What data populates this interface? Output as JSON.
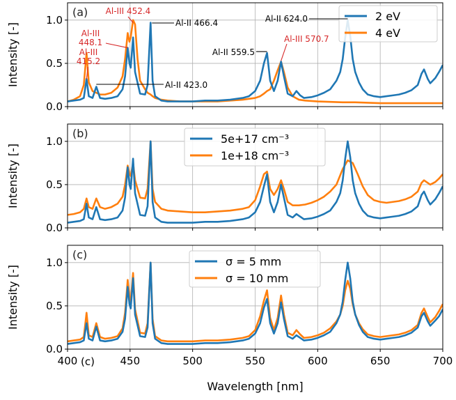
{
  "chart_data": [
    {
      "type": "line",
      "panel_label": "(a)",
      "xlabel": "",
      "ylabel": "Intensity [-]",
      "xlim": [
        400,
        700
      ],
      "ylim": [
        0,
        1.2
      ],
      "yticks": [
        "0.0",
        "0.5",
        "1.0"
      ],
      "grid": true,
      "legend_position": "top-right",
      "series": [
        {
          "name": "2 eV",
          "color": "#1f77b4",
          "x": [
            400,
            405,
            410,
            413,
            415.2,
            417,
            420,
            423,
            426,
            430,
            435,
            440,
            444,
            446,
            448.1,
            449.5,
            450.5,
            452.4,
            454,
            458,
            462,
            464,
            466.4,
            468,
            470,
            475,
            480,
            490,
            500,
            510,
            520,
            530,
            540,
            545,
            550,
            554,
            557,
            559.5,
            562,
            565,
            568,
            570.7,
            573,
            576,
            580,
            583,
            586,
            589,
            595,
            600,
            605,
            610,
            615,
            618,
            620,
            622,
            624,
            626,
            628,
            630,
            633,
            636,
            640,
            645,
            650,
            655,
            660,
            665,
            670,
            675,
            680,
            683,
            685,
            688,
            690,
            694,
            697,
            700
          ],
          "y": [
            0.06,
            0.07,
            0.08,
            0.1,
            0.32,
            0.12,
            0.1,
            0.23,
            0.1,
            0.09,
            0.1,
            0.12,
            0.2,
            0.35,
            0.68,
            0.5,
            0.45,
            0.8,
            0.4,
            0.15,
            0.14,
            0.25,
            0.97,
            0.3,
            0.12,
            0.07,
            0.06,
            0.06,
            0.06,
            0.07,
            0.07,
            0.08,
            0.1,
            0.12,
            0.18,
            0.3,
            0.5,
            0.62,
            0.3,
            0.18,
            0.3,
            0.52,
            0.35,
            0.15,
            0.12,
            0.18,
            0.13,
            0.1,
            0.11,
            0.13,
            0.16,
            0.2,
            0.3,
            0.4,
            0.55,
            0.8,
            1.0,
            0.82,
            0.55,
            0.4,
            0.28,
            0.2,
            0.14,
            0.12,
            0.11,
            0.12,
            0.13,
            0.14,
            0.16,
            0.19,
            0.25,
            0.38,
            0.43,
            0.32,
            0.27,
            0.33,
            0.4,
            0.48
          ]
        },
        {
          "name": "4 eV",
          "color": "#ff7f0e",
          "x": [
            400,
            405,
            410,
            413,
            415.2,
            417,
            420,
            423,
            426,
            430,
            435,
            440,
            444,
            446,
            448.1,
            449.5,
            450.5,
            452.4,
            454,
            456,
            458,
            462,
            464,
            466.4,
            468,
            470,
            475,
            480,
            490,
            500,
            510,
            520,
            530,
            540,
            545,
            550,
            554,
            557,
            559.5,
            562,
            565,
            568,
            570.7,
            573,
            576,
            580,
            585,
            590,
            600,
            620,
            624,
            630,
            650,
            680,
            700
          ],
          "y": [
            0.06,
            0.08,
            0.12,
            0.25,
            0.62,
            0.28,
            0.18,
            0.16,
            0.14,
            0.14,
            0.16,
            0.22,
            0.35,
            0.55,
            0.85,
            0.75,
            0.8,
            1.0,
            0.95,
            0.55,
            0.3,
            0.2,
            0.16,
            0.14,
            0.12,
            0.1,
            0.08,
            0.07,
            0.06,
            0.06,
            0.06,
            0.06,
            0.07,
            0.08,
            0.09,
            0.1,
            0.12,
            0.15,
            0.18,
            0.2,
            0.3,
            0.42,
            0.52,
            0.4,
            0.22,
            0.12,
            0.08,
            0.07,
            0.06,
            0.05,
            0.05,
            0.05,
            0.04,
            0.04,
            0.04
          ]
        }
      ],
      "annotations": [
        {
          "text": "Al-III 452.4",
          "color": "#d62728",
          "x": 452.4,
          "y": 1.0
        },
        {
          "text": "Al-III",
          "color": "#d62728",
          "x": 448.1,
          "y": 0.68
        },
        {
          "text": "448.1",
          "color": "#d62728",
          "x": 448.1,
          "y": 0.68
        },
        {
          "text": "Al-III",
          "color": "#d62728",
          "x": 415.2,
          "y": 0.32
        },
        {
          "text": "415.2",
          "color": "#d62728",
          "x": 415.2,
          "y": 0.32
        },
        {
          "text": "Al-II 466.4",
          "color": "#000000",
          "x": 466.4,
          "y": 0.97
        },
        {
          "text": "Al-II 423.0",
          "color": "#000000",
          "x": 423.0,
          "y": 0.23
        },
        {
          "text": "Al-II 559.5",
          "color": "#000000",
          "x": 559.5,
          "y": 0.62
        },
        {
          "text": "Al-III 570.7",
          "color": "#d62728",
          "x": 570.7,
          "y": 0.52
        },
        {
          "text": "Al-II 624.0",
          "color": "#000000",
          "x": 624.0,
          "y": 1.0
        }
      ]
    },
    {
      "type": "line",
      "panel_label": "(b)",
      "xlabel": "",
      "ylabel": "Intensity [-]",
      "xlim": [
        400,
        700
      ],
      "ylim": [
        0,
        1.2
      ],
      "yticks": [
        "0.0",
        "0.5",
        "1.0"
      ],
      "grid": true,
      "legend_position": "top-center",
      "series": [
        {
          "name": "5e+17 cm⁻³",
          "color": "#1f77b4",
          "x": [
            400,
            405,
            410,
            413,
            415.2,
            417,
            420,
            423,
            426,
            430,
            435,
            440,
            444,
            446,
            448.1,
            449.5,
            450.5,
            452.4,
            454,
            458,
            462,
            464,
            466.4,
            468,
            470,
            475,
            480,
            490,
            500,
            510,
            520,
            530,
            540,
            545,
            550,
            554,
            557,
            559.5,
            562,
            565,
            568,
            570.7,
            573,
            576,
            580,
            583,
            586,
            589,
            595,
            600,
            605,
            610,
            615,
            618,
            620,
            622,
            624,
            626,
            628,
            630,
            633,
            636,
            640,
            645,
            650,
            655,
            660,
            665,
            670,
            675,
            680,
            683,
            685,
            688,
            690,
            694,
            697,
            700
          ],
          "y": [
            0.06,
            0.07,
            0.08,
            0.1,
            0.28,
            0.12,
            0.1,
            0.24,
            0.1,
            0.09,
            0.1,
            0.12,
            0.2,
            0.35,
            0.7,
            0.5,
            0.45,
            0.8,
            0.4,
            0.15,
            0.14,
            0.25,
            1.0,
            0.3,
            0.12,
            0.07,
            0.06,
            0.06,
            0.06,
            0.07,
            0.07,
            0.08,
            0.1,
            0.12,
            0.18,
            0.3,
            0.48,
            0.62,
            0.3,
            0.18,
            0.3,
            0.5,
            0.35,
            0.15,
            0.12,
            0.16,
            0.13,
            0.1,
            0.11,
            0.13,
            0.16,
            0.2,
            0.3,
            0.4,
            0.55,
            0.8,
            1.0,
            0.82,
            0.55,
            0.4,
            0.28,
            0.2,
            0.14,
            0.12,
            0.11,
            0.12,
            0.13,
            0.14,
            0.16,
            0.19,
            0.25,
            0.38,
            0.42,
            0.32,
            0.27,
            0.33,
            0.4,
            0.48
          ]
        },
        {
          "name": "1e+18 cm⁻³",
          "color": "#ff7f0e",
          "x": [
            400,
            405,
            410,
            413,
            415.2,
            417,
            420,
            423,
            426,
            430,
            435,
            440,
            444,
            446,
            448.1,
            449.5,
            450.5,
            452.4,
            454,
            458,
            462,
            464,
            466.4,
            468,
            470,
            475,
            480,
            490,
            500,
            510,
            520,
            530,
            540,
            545,
            550,
            554,
            557,
            559.5,
            562,
            565,
            568,
            570.7,
            573,
            576,
            580,
            585,
            590,
            595,
            600,
            605,
            610,
            615,
            620,
            624,
            628,
            632,
            636,
            640,
            645,
            650,
            655,
            660,
            665,
            670,
            675,
            680,
            683,
            685,
            688,
            690,
            694,
            697,
            700
          ],
          "y": [
            0.15,
            0.16,
            0.18,
            0.22,
            0.34,
            0.24,
            0.22,
            0.34,
            0.24,
            0.22,
            0.24,
            0.28,
            0.36,
            0.5,
            0.72,
            0.62,
            0.6,
            0.75,
            0.55,
            0.35,
            0.34,
            0.45,
            1.0,
            0.45,
            0.3,
            0.22,
            0.2,
            0.19,
            0.18,
            0.18,
            0.19,
            0.2,
            0.22,
            0.24,
            0.32,
            0.48,
            0.62,
            0.65,
            0.45,
            0.38,
            0.45,
            0.55,
            0.45,
            0.3,
            0.26,
            0.26,
            0.27,
            0.29,
            0.32,
            0.36,
            0.42,
            0.5,
            0.68,
            0.78,
            0.75,
            0.62,
            0.48,
            0.38,
            0.32,
            0.3,
            0.29,
            0.3,
            0.31,
            0.33,
            0.36,
            0.42,
            0.52,
            0.55,
            0.52,
            0.5,
            0.53,
            0.57,
            0.62
          ]
        }
      ]
    },
    {
      "type": "line",
      "panel_label": "(c)",
      "xlabel": "Wavelength [nm]",
      "ylabel": "Intensity [-]",
      "xlim": [
        400,
        700
      ],
      "ylim": [
        0,
        1.2
      ],
      "xticks": [
        "400",
        "450",
        "500",
        "550",
        "600",
        "650",
        "700"
      ],
      "xtick_values": [
        400,
        450,
        500,
        550,
        600,
        650,
        700
      ],
      "extra_text": "(c)",
      "yticks": [
        "0.0",
        "0.5",
        "1.0"
      ],
      "grid": true,
      "legend_position": "top-center",
      "series": [
        {
          "name": "σ = 5 mm",
          "color": "#1f77b4",
          "x": [
            400,
            405,
            410,
            413,
            415.2,
            417,
            420,
            423,
            426,
            430,
            435,
            440,
            444,
            446,
            448.1,
            449.5,
            450.5,
            452.4,
            454,
            458,
            462,
            464,
            466.4,
            468,
            470,
            475,
            480,
            490,
            500,
            510,
            520,
            530,
            540,
            545,
            550,
            554,
            557,
            559.5,
            562,
            565,
            568,
            570.7,
            573,
            576,
            580,
            583,
            586,
            589,
            595,
            600,
            605,
            610,
            615,
            618,
            620,
            622,
            624,
            626,
            628,
            630,
            633,
            636,
            640,
            645,
            650,
            655,
            660,
            665,
            670,
            675,
            680,
            683,
            685,
            688,
            690,
            694,
            697,
            700
          ],
          "y": [
            0.06,
            0.07,
            0.08,
            0.1,
            0.3,
            0.12,
            0.1,
            0.26,
            0.1,
            0.09,
            0.1,
            0.12,
            0.2,
            0.35,
            0.72,
            0.52,
            0.47,
            0.82,
            0.4,
            0.15,
            0.14,
            0.25,
            1.0,
            0.3,
            0.12,
            0.07,
            0.06,
            0.06,
            0.06,
            0.07,
            0.07,
            0.08,
            0.1,
            0.12,
            0.18,
            0.3,
            0.48,
            0.58,
            0.3,
            0.18,
            0.3,
            0.54,
            0.35,
            0.15,
            0.12,
            0.16,
            0.13,
            0.1,
            0.11,
            0.13,
            0.16,
            0.2,
            0.3,
            0.4,
            0.55,
            0.8,
            1.0,
            0.82,
            0.55,
            0.4,
            0.28,
            0.2,
            0.14,
            0.12,
            0.11,
            0.12,
            0.13,
            0.14,
            0.16,
            0.19,
            0.25,
            0.38,
            0.42,
            0.32,
            0.27,
            0.33,
            0.38,
            0.46
          ]
        },
        {
          "name": "σ = 10 mm",
          "color": "#ff7f0e",
          "x": [
            400,
            405,
            410,
            413,
            415.2,
            417,
            420,
            423,
            426,
            430,
            435,
            440,
            444,
            446,
            448.1,
            449.5,
            450.5,
            452.4,
            454,
            458,
            462,
            464,
            466.4,
            468,
            470,
            475,
            480,
            490,
            500,
            510,
            520,
            530,
            540,
            545,
            550,
            554,
            557,
            559.5,
            562,
            565,
            568,
            570.7,
            573,
            576,
            580,
            583,
            586,
            589,
            595,
            600,
            605,
            610,
            615,
            618,
            620,
            622,
            624,
            626,
            628,
            630,
            633,
            636,
            640,
            645,
            650,
            655,
            660,
            665,
            670,
            675,
            680,
            683,
            685,
            688,
            690,
            694,
            697,
            700
          ],
          "y": [
            0.09,
            0.1,
            0.11,
            0.14,
            0.42,
            0.16,
            0.14,
            0.3,
            0.14,
            0.12,
            0.13,
            0.15,
            0.24,
            0.42,
            0.8,
            0.6,
            0.55,
            0.88,
            0.46,
            0.19,
            0.18,
            0.3,
            1.0,
            0.35,
            0.15,
            0.1,
            0.09,
            0.09,
            0.09,
            0.1,
            0.1,
            0.11,
            0.13,
            0.15,
            0.22,
            0.38,
            0.56,
            0.68,
            0.36,
            0.22,
            0.36,
            0.62,
            0.4,
            0.19,
            0.16,
            0.22,
            0.17,
            0.13,
            0.14,
            0.16,
            0.19,
            0.24,
            0.32,
            0.4,
            0.5,
            0.68,
            0.79,
            0.7,
            0.52,
            0.4,
            0.3,
            0.23,
            0.17,
            0.15,
            0.14,
            0.15,
            0.16,
            0.17,
            0.19,
            0.22,
            0.28,
            0.42,
            0.47,
            0.37,
            0.31,
            0.37,
            0.44,
            0.52
          ]
        }
      ]
    }
  ]
}
